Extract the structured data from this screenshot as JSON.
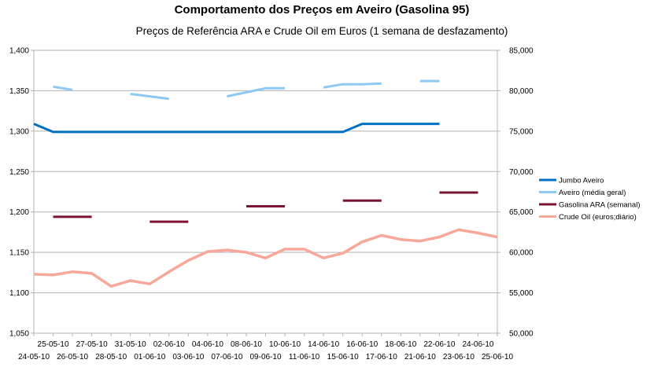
{
  "chart_data": {
    "type": "line",
    "title": "Comportamento dos Preços em Aveiro (Gasolina 95)",
    "subtitle": "Preços de Referência ARA e Crude Oil em Euros (1 semana de desfazamento)",
    "x": [
      "24-05-10",
      "25-05-10",
      "26-05-10",
      "27-05-10",
      "28-05-10",
      "31-05-10",
      "01-06-10",
      "02-06-10",
      "03-06-10",
      "04-06-10",
      "07-06-10",
      "08-06-10",
      "09-06-10",
      "10-06-10",
      "11-06-10",
      "14-06-10",
      "15-06-10",
      "16-06-10",
      "17-06-10",
      "18-06-10",
      "21-06-10",
      "22-06-10",
      "23-06-10",
      "24-06-10",
      "25-06-10"
    ],
    "y_left": {
      "ylim": [
        1.05,
        1.4
      ],
      "ticks": [
        "1,050",
        "1,100",
        "1,150",
        "1,200",
        "1,250",
        "1,300",
        "1,350",
        "1,400"
      ],
      "tick_values": [
        1.05,
        1.1,
        1.15,
        1.2,
        1.25,
        1.3,
        1.35,
        1.4
      ]
    },
    "y_right": {
      "ylim": [
        50000,
        85000
      ],
      "ticks": [
        "50,000",
        "55,000",
        "60,000",
        "65,000",
        "70,000",
        "75,000",
        "80,000",
        "85,000"
      ],
      "tick_values": [
        50000,
        55000,
        60000,
        65000,
        70000,
        75000,
        80000,
        85000
      ]
    },
    "grid": "horizontal",
    "legend_position": "right",
    "series": [
      {
        "name": "Jumbo Aveiro",
        "axis": "left",
        "color": "#0070c0",
        "width": 3,
        "values": [
          1.309,
          1.299,
          1.299,
          1.299,
          1.299,
          1.299,
          1.299,
          1.299,
          1.299,
          1.299,
          1.299,
          1.299,
          1.299,
          1.299,
          1.299,
          1.299,
          1.299,
          1.309,
          1.309,
          1.309,
          1.309,
          1.309,
          null,
          null,
          null
        ]
      },
      {
        "name": "Aveiro (média geral)",
        "axis": "left",
        "color": "#8ec9f4",
        "width": 3,
        "values": [
          null,
          1.355,
          1.351,
          null,
          null,
          1.346,
          1.343,
          1.34,
          null,
          null,
          1.343,
          1.348,
          1.353,
          1.353,
          null,
          1.354,
          1.358,
          1.358,
          1.359,
          null,
          1.362,
          1.362,
          null,
          null,
          null
        ]
      },
      {
        "name": "Gasolina ARA (semanal)",
        "axis": "left",
        "color": "#7b1432",
        "width": 3,
        "values": [
          null,
          1.194,
          1.194,
          1.194,
          null,
          null,
          1.188,
          1.188,
          1.188,
          null,
          null,
          1.207,
          1.207,
          1.207,
          null,
          null,
          1.214,
          1.214,
          1.214,
          null,
          null,
          1.224,
          1.224,
          1.224,
          null
        ]
      },
      {
        "name": "Crude Oil (euros;diário)",
        "axis": "right",
        "color": "#f7a899",
        "width": 3.5,
        "values": [
          57.3,
          57.2,
          57.6,
          57.4,
          55.8,
          56.5,
          56.1,
          57.6,
          59.0,
          60.1,
          60.3,
          60.0,
          59.3,
          60.4,
          60.4,
          59.3,
          59.9,
          61.3,
          62.1,
          61.6,
          61.4,
          61.9,
          62.8,
          62.4,
          61.9
        ]
      }
    ]
  }
}
